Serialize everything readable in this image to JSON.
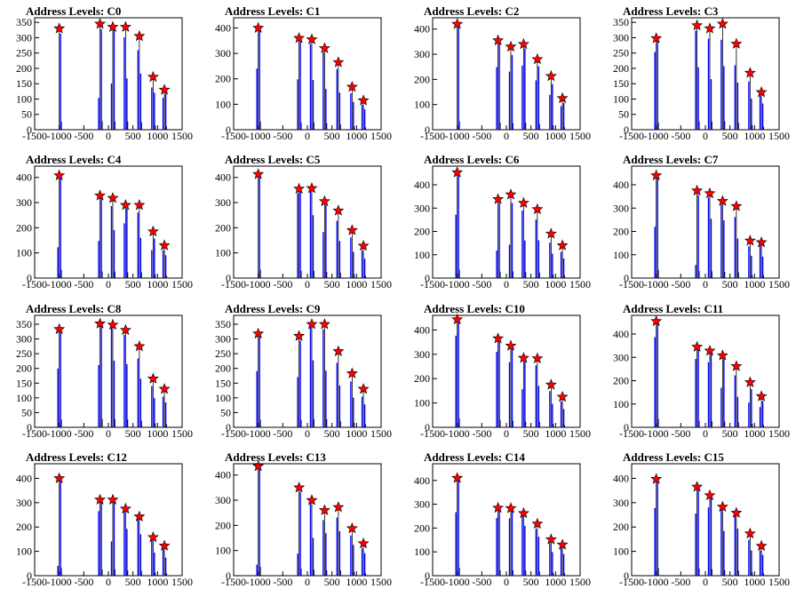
{
  "figure": {
    "title_prefix": "Address Levels: "
  },
  "chart_data": [
    {
      "type": "bar",
      "title": "Address Levels: C0",
      "x_ticks": [
        -1500,
        -1000,
        -500,
        0,
        500,
        1000,
        1500
      ],
      "y_ticks": [
        0,
        50,
        100,
        150,
        200,
        250,
        300,
        350
      ],
      "ylim": [
        0,
        365
      ],
      "peaks_x": [
        -1000,
        -170,
        90,
        350,
        630,
        910,
        1140
      ],
      "peaks_y": [
        330,
        345,
        335,
        335,
        305,
        172,
        130
      ],
      "shading": [
        [
          0,
          0,
          0.95
        ],
        [
          0,
          0.3,
          0.95
        ],
        [
          0,
          0.45,
          1
        ],
        [
          1,
          0.5,
          0.9
        ],
        [
          1,
          0.6,
          0.85
        ],
        [
          1,
          0.7,
          0.8
        ],
        [
          1,
          0.9,
          0.8
        ]
      ]
    },
    {
      "type": "bar",
      "title": "Address Levels: C1",
      "x_ticks": [
        -1500,
        -1000,
        -500,
        0,
        500,
        1000,
        1500
      ],
      "y_ticks": [
        0,
        100,
        200,
        300,
        400
      ],
      "ylim": [
        0,
        440
      ],
      "peaks_x": [
        -1000,
        -170,
        90,
        350,
        630,
        910,
        1140
      ],
      "peaks_y": [
        400,
        360,
        355,
        320,
        265,
        168,
        115
      ],
      "shading": [
        [
          0,
          0.6,
          1
        ],
        [
          0,
          0.55,
          1
        ],
        [
          1,
          0.55,
          0.95
        ],
        [
          1,
          0.5,
          0.95
        ],
        [
          1,
          0.55,
          0.9
        ],
        [
          1,
          0.65,
          0.85
        ],
        [
          1,
          0.7,
          0.85
        ]
      ]
    },
    {
      "type": "bar",
      "title": "Address Levels: C2",
      "x_ticks": [
        -1500,
        -1000,
        -500,
        0,
        500,
        1000,
        1500
      ],
      "y_ticks": [
        0,
        100,
        200,
        300,
        400
      ],
      "ylim": [
        0,
        445
      ],
      "peaks_x": [
        -1000,
        -170,
        90,
        350,
        630,
        910,
        1140
      ],
      "peaks_y": [
        420,
        355,
        330,
        340,
        280,
        213,
        125
      ],
      "shading": [
        [
          0,
          0,
          1
        ],
        [
          0,
          0.7,
          1
        ],
        [
          0,
          0.7,
          0.9
        ],
        [
          0,
          0.75,
          0.95
        ],
        [
          0,
          0.7,
          0.9
        ],
        [
          0,
          0.65,
          0.85
        ],
        [
          0,
          0.75,
          0.85
        ]
      ]
    },
    {
      "type": "bar",
      "title": "Address Levels: C3",
      "x_ticks": [
        -1500,
        -1000,
        -500,
        0,
        500,
        1000,
        1500
      ],
      "y_ticks": [
        0,
        50,
        100,
        150,
        200,
        250,
        300,
        350
      ],
      "ylim": [
        0,
        365
      ],
      "peaks_x": [
        -1000,
        -170,
        90,
        350,
        630,
        910,
        1140
      ],
      "peaks_y": [
        298,
        340,
        330,
        345,
        280,
        185,
        122
      ],
      "shading": [
        [
          0,
          0.85,
          1
        ],
        [
          1,
          0.6,
          0.95
        ],
        [
          1,
          0.5,
          0.9
        ],
        [
          1,
          0.6,
          0.85
        ],
        [
          1,
          0.55,
          0.75
        ],
        [
          1,
          0.55,
          0.85
        ],
        [
          1,
          0.7,
          0.9
        ]
      ]
    },
    {
      "type": "bar",
      "title": "Address Levels: C4",
      "x_ticks": [
        -1500,
        -1000,
        -500,
        0,
        500,
        1000,
        1500
      ],
      "y_ticks": [
        0,
        100,
        200,
        300,
        400
      ],
      "ylim": [
        0,
        445
      ],
      "peaks_x": [
        -1000,
        -170,
        90,
        350,
        630,
        910,
        1140
      ],
      "peaks_y": [
        408,
        328,
        318,
        290,
        290,
        185,
        130
      ],
      "shading": [
        [
          0,
          0.3,
          1
        ],
        [
          0,
          0.45,
          1
        ],
        [
          1,
          0.6,
          0.9
        ],
        [
          0,
          0.75,
          0.95
        ],
        [
          1,
          0.55,
          0.9
        ],
        [
          0,
          0.6,
          0.85
        ],
        [
          1,
          0.7,
          0.85
        ]
      ]
    },
    {
      "type": "bar",
      "title": "Address Levels: C5",
      "x_ticks": [
        -1500,
        -1000,
        -500,
        0,
        500,
        1000,
        1500
      ],
      "y_ticks": [
        0,
        100,
        200,
        300,
        400
      ],
      "ylim": [
        0,
        445
      ],
      "peaks_x": [
        -1000,
        -170,
        90,
        350,
        630,
        910,
        1140
      ],
      "peaks_y": [
        413,
        355,
        357,
        305,
        268,
        190,
        128
      ],
      "shading": [
        [
          0,
          0,
          1
        ],
        [
          0,
          0.95,
          1
        ],
        [
          1,
          0.7,
          1
        ],
        [
          0,
          0.6,
          0.95
        ],
        [
          1,
          0.55,
          0.85
        ],
        [
          1,
          0.55,
          0.85
        ],
        [
          1,
          0.6,
          0.85
        ]
      ]
    },
    {
      "type": "bar",
      "title": "Address Levels: C6",
      "x_ticks": [
        -1500,
        -1000,
        -500,
        0,
        500,
        1000,
        1500
      ],
      "y_ticks": [
        0,
        100,
        200,
        300,
        400
      ],
      "ylim": [
        0,
        480
      ],
      "peaks_x": [
        -1000,
        -170,
        90,
        350,
        630,
        910,
        1140
      ],
      "peaks_y": [
        453,
        338,
        358,
        322,
        295,
        190,
        140
      ],
      "shading": [
        [
          0,
          0.6,
          1
        ],
        [
          0,
          0.35,
          0.95
        ],
        [
          0,
          0.4,
          0.9
        ],
        [
          1,
          0.5,
          0.9
        ],
        [
          1,
          0.55,
          0.85
        ],
        [
          1,
          0.55,
          0.8
        ],
        [
          1,
          0.6,
          0.8
        ]
      ]
    },
    {
      "type": "bar",
      "title": "Address Levels: C7",
      "x_ticks": [
        -1500,
        -1000,
        -500,
        0,
        500,
        1000,
        1500
      ],
      "y_ticks": [
        0,
        100,
        200,
        300,
        400
      ],
      "ylim": [
        0,
        480
      ],
      "peaks_x": [
        -1000,
        -170,
        90,
        350,
        630,
        910,
        1140
      ],
      "peaks_y": [
        440,
        375,
        363,
        330,
        308,
        160,
        153
      ],
      "shading": [
        [
          0,
          0.5,
          1
        ],
        [
          0,
          0.15,
          0.95
        ],
        [
          1,
          0.7,
          0.95
        ],
        [
          1,
          0.75,
          0.95
        ],
        [
          1,
          0.55,
          0.85
        ],
        [
          1,
          0.6,
          0.85
        ],
        [
          1,
          0.6,
          0.9
        ]
      ]
    },
    {
      "type": "bar",
      "title": "Address Levels: C8",
      "x_ticks": [
        -1500,
        -1000,
        -500,
        0,
        500,
        1000,
        1500
      ],
      "y_ticks": [
        0,
        50,
        100,
        150,
        200,
        250,
        300,
        350
      ],
      "ylim": [
        0,
        380
      ],
      "peaks_x": [
        -1000,
        -170,
        90,
        350,
        630,
        910,
        1140
      ],
      "peaks_y": [
        333,
        352,
        348,
        330,
        275,
        165,
        130
      ],
      "shading": [
        [
          0,
          0.6,
          1
        ],
        [
          0,
          0.6,
          1
        ],
        [
          1,
          0.65,
          1
        ],
        [
          1,
          0.65,
          0.95
        ],
        [
          1,
          0.6,
          0.85
        ],
        [
          1,
          0.6,
          0.85
        ],
        [
          1,
          0.65,
          0.8
        ]
      ]
    },
    {
      "type": "bar",
      "title": "Address Levels: C9",
      "x_ticks": [
        -1500,
        -1000,
        -500,
        0,
        500,
        1000,
        1500
      ],
      "y_ticks": [
        0,
        50,
        100,
        150,
        200,
        250,
        300,
        350
      ],
      "ylim": [
        0,
        380
      ],
      "peaks_x": [
        -1000,
        -170,
        90,
        350,
        630,
        910,
        1140
      ],
      "peaks_y": [
        318,
        310,
        350,
        350,
        258,
        183,
        130
      ],
      "shading": [
        [
          0,
          0.6,
          1
        ],
        [
          0,
          0.55,
          0.95
        ],
        [
          1,
          0.65,
          1
        ],
        [
          1,
          0.55,
          0.95
        ],
        [
          1,
          0.55,
          0.85
        ],
        [
          1,
          0.55,
          0.85
        ],
        [
          1,
          0.6,
          0.8
        ]
      ]
    },
    {
      "type": "bar",
      "title": "Address Levels: C10",
      "x_ticks": [
        -1500,
        -1000,
        -500,
        0,
        500,
        1000,
        1500
      ],
      "y_ticks": [
        0,
        100,
        200,
        300,
        400
      ],
      "ylim": [
        0,
        460
      ],
      "peaks_x": [
        -1000,
        -170,
        90,
        350,
        630,
        910,
        1140
      ],
      "peaks_y": [
        443,
        365,
        335,
        285,
        283,
        175,
        125
      ],
      "shading": [
        [
          0,
          0.85,
          1
        ],
        [
          0,
          0.85,
          1
        ],
        [
          0,
          0.8,
          1
        ],
        [
          0,
          0.55,
          0.95
        ],
        [
          1,
          0.6,
          0.9
        ],
        [
          1,
          0.55,
          0.85
        ],
        [
          1,
          0.6,
          0.85
        ]
      ]
    },
    {
      "type": "bar",
      "title": "Address Levels: C11",
      "x_ticks": [
        -1500,
        -1000,
        -500,
        0,
        500,
        1000,
        1500
      ],
      "y_ticks": [
        0,
        100,
        200,
        300,
        400
      ],
      "ylim": [
        0,
        480
      ],
      "peaks_x": [
        -1000,
        -170,
        90,
        350,
        630,
        910,
        1140
      ],
      "peaks_y": [
        455,
        345,
        328,
        308,
        262,
        193,
        133
      ],
      "shading": [
        [
          0,
          0.85,
          1
        ],
        [
          0,
          0.85,
          1
        ],
        [
          0,
          0.85,
          1
        ],
        [
          0,
          0.55,
          0.95
        ],
        [
          1,
          0.5,
          0.85
        ],
        [
          0,
          0.55,
          0.85
        ],
        [
          0,
          0.65,
          0.85
        ]
      ]
    },
    {
      "type": "bar",
      "title": "Address Levels: C12",
      "x_ticks": [
        -1500,
        -1000,
        -500,
        0,
        500,
        1000,
        1500
      ],
      "y_ticks": [
        0,
        100,
        200,
        300,
        400
      ],
      "ylim": [
        0,
        460
      ],
      "peaks_x": [
        -1000,
        -170,
        90,
        350,
        630,
        910,
        1140
      ],
      "peaks_y": [
        400,
        312,
        312,
        275,
        243,
        158,
        123
      ],
      "shading": [
        [
          0,
          0.1,
          1
        ],
        [
          0,
          0.85,
          1
        ],
        [
          0,
          0.45,
          1
        ],
        [
          1,
          0.7,
          1
        ],
        [
          1,
          0.7,
          1
        ],
        [
          1,
          0.6,
          0.95
        ],
        [
          1,
          0.6,
          0.95
        ]
      ]
    },
    {
      "type": "bar",
      "title": "Address Levels: C13",
      "x_ticks": [
        -1500,
        -1000,
        -500,
        0,
        500,
        1000,
        1500
      ],
      "y_ticks": [
        0,
        100,
        200,
        300,
        400
      ],
      "ylim": [
        0,
        445
      ],
      "peaks_x": [
        -1000,
        -170,
        90,
        350,
        630,
        910,
        1140
      ],
      "peaks_y": [
        435,
        350,
        300,
        260,
        272,
        188,
        128
      ],
      "shading": [
        [
          0,
          0.1,
          1
        ],
        [
          0,
          0.25,
          0.95
        ],
        [
          1,
          0.5,
          0.95
        ],
        [
          1,
          0.65,
          0.85
        ],
        [
          1,
          0.65,
          0.85
        ],
        [
          1,
          0.65,
          0.85
        ],
        [
          1,
          0.7,
          0.85
        ]
      ]
    },
    {
      "type": "bar",
      "title": "Address Levels: C14",
      "x_ticks": [
        -1500,
        -1000,
        -500,
        0,
        500,
        1000,
        1500
      ],
      "y_ticks": [
        0,
        100,
        200,
        300,
        400
      ],
      "ylim": [
        0,
        470
      ],
      "peaks_x": [
        -1000,
        -170,
        90,
        350,
        630,
        910,
        1140
      ],
      "peaks_y": [
        410,
        285,
        283,
        262,
        218,
        152,
        130
      ],
      "shading": [
        [
          0,
          0.65,
          1
        ],
        [
          0,
          0.85,
          1
        ],
        [
          0,
          0.85,
          1
        ],
        [
          1,
          0.8,
          1
        ],
        [
          1,
          0.75,
          0.9
        ],
        [
          1,
          0.65,
          0.9
        ],
        [
          1,
          0.7,
          0.9
        ]
      ]
    },
    {
      "type": "bar",
      "title": "Address Levels: C15",
      "x_ticks": [
        -1500,
        -1000,
        -500,
        0,
        500,
        1000,
        1500
      ],
      "y_ticks": [
        0,
        100,
        200,
        300,
        400
      ],
      "ylim": [
        0,
        460
      ],
      "peaks_x": [
        -1000,
        -170,
        90,
        350,
        630,
        910,
        1140
      ],
      "peaks_y": [
        397,
        365,
        330,
        283,
        258,
        173,
        122
      ],
      "shading": [
        [
          0,
          0.7,
          1
        ],
        [
          0,
          0.7,
          1
        ],
        [
          0,
          0.85,
          1
        ],
        [
          1,
          0.65,
          1
        ],
        [
          1,
          0.75,
          0.95
        ],
        [
          1,
          0.6,
          0.85
        ],
        [
          1,
          0.7,
          0.85
        ]
      ]
    }
  ],
  "colors": {
    "histogram": "#0000ff",
    "outline": "#000000",
    "marker_fill": "#ff0000",
    "marker_stroke": "#000000",
    "frame": "#000000"
  }
}
